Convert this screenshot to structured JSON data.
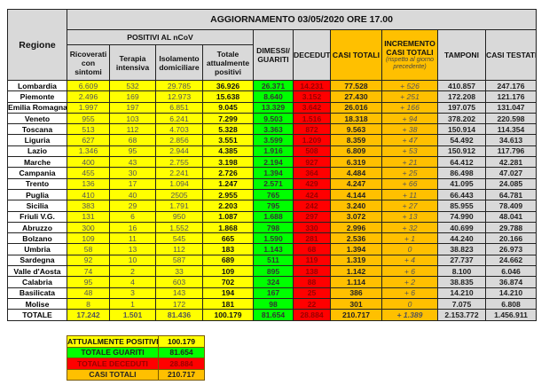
{
  "header": {
    "regione": "Regione",
    "title": "AGGIORNAMENTO 03/05/2020 ORE 17.00",
    "positivi": "POSITIVI AL nCoV",
    "ricoverati": "Ricoverati con sintomi",
    "terapia": "Terapia intensiva",
    "isolamento": "Isolamento domiciliare",
    "totale_positivi": "Totale attualmente positivi",
    "dimessi": "DIMESSI/ GUARITI",
    "deceduti": "DECEDUTI",
    "casi_totali": "CASI TOTALI",
    "incremento": "INCREMENTO CASI TOTALI",
    "incremento_note": "(rispetto al giorno precedente)",
    "tamponi": "TAMPONI",
    "casi_testati": "CASI TESTATI"
  },
  "rows": [
    [
      "Lombardia",
      "6.609",
      "532",
      "29.785",
      "36.926",
      "26.371",
      "14.231",
      "77.528",
      "+ 526",
      "410.857",
      "247.176"
    ],
    [
      "Piemonte",
      "2.496",
      "169",
      "12.973",
      "15.638",
      "8.640",
      "3.152",
      "27.430",
      "+ 251",
      "172.208",
      "121.176"
    ],
    [
      "Emilia Romagna",
      "1.997",
      "197",
      "6.851",
      "9.045",
      "13.329",
      "3.642",
      "26.016",
      "+ 166",
      "197.075",
      "131.047"
    ],
    [
      "Veneto",
      "955",
      "103",
      "6.241",
      "7.299",
      "9.503",
      "1.516",
      "18.318",
      "+ 94",
      "378.202",
      "220.598"
    ],
    [
      "Toscana",
      "513",
      "112",
      "4.703",
      "5.328",
      "3.363",
      "872",
      "9.563",
      "+ 38",
      "150.914",
      "114.354"
    ],
    [
      "Liguria",
      "627",
      "68",
      "2.856",
      "3.551",
      "3.599",
      "1.209",
      "8.359",
      "+ 47",
      "54.492",
      "34.613"
    ],
    [
      "Lazio",
      "1.346",
      "95",
      "2.944",
      "4.385",
      "1.916",
      "508",
      "6.809",
      "+ 53",
      "150.912",
      "117.796"
    ],
    [
      "Marche",
      "400",
      "43",
      "2.755",
      "3.198",
      "2.194",
      "927",
      "6.319",
      "+ 21",
      "64.412",
      "42.281"
    ],
    [
      "Campania",
      "455",
      "30",
      "2.241",
      "2.726",
      "1.394",
      "364",
      "4.484",
      "+ 25",
      "86.498",
      "47.027"
    ],
    [
      "Trento",
      "136",
      "17",
      "1.094",
      "1.247",
      "2.571",
      "429",
      "4.247",
      "+ 66",
      "41.095",
      "24.085"
    ],
    [
      "Puglia",
      "410",
      "40",
      "2505",
      "2.955",
      "765",
      "424",
      "4.144",
      "+ 11",
      "66.443",
      "64.781"
    ],
    [
      "Sicilia",
      "383",
      "29",
      "1.791",
      "2.203",
      "795",
      "242",
      "3.240",
      "+ 27",
      "85.955",
      "78.409"
    ],
    [
      "Friuli V.G.",
      "131",
      "6",
      "950",
      "1.087",
      "1.688",
      "297",
      "3.072",
      "+ 13",
      "74.990",
      "48.041"
    ],
    [
      "Abruzzo",
      "300",
      "16",
      "1.552",
      "1.868",
      "798",
      "330",
      "2.996",
      "+ 32",
      "40.699",
      "29.788"
    ],
    [
      "Bolzano",
      "109",
      "11",
      "545",
      "665",
      "1.590",
      "281",
      "2.536",
      "+ 1",
      "44.240",
      "20.166"
    ],
    [
      "Umbria",
      "58",
      "13",
      "112",
      "183",
      "1.143",
      "68",
      "1.394",
      "0",
      "38.823",
      "26.973"
    ],
    [
      "Sardegna",
      "92",
      "10",
      "587",
      "689",
      "511",
      "119",
      "1.319",
      "+ 4",
      "27.737",
      "24.662"
    ],
    [
      "Valle d'Aosta",
      "74",
      "2",
      "33",
      "109",
      "895",
      "138",
      "1.142",
      "+ 6",
      "8.100",
      "6.046"
    ],
    [
      "Calabria",
      "95",
      "4",
      "603",
      "702",
      "324",
      "88",
      "1.114",
      "+ 2",
      "38.835",
      "36.874"
    ],
    [
      "Basilicata",
      "48",
      "3",
      "143",
      "194",
      "167",
      "25",
      "386",
      "+ 6",
      "14.210",
      "14.210"
    ],
    [
      "Molise",
      "8",
      "1",
      "172",
      "181",
      "98",
      "22",
      "301",
      "0",
      "7.075",
      "6.808"
    ]
  ],
  "totale": [
    "TOTALE",
    "17.242",
    "1.501",
    "81.436",
    "100.179",
    "81.654",
    "28.884",
    "210.717",
    "+ 1.389",
    "2.153.772",
    "1.456.911"
  ],
  "summary": [
    {
      "label": "ATTUALMENTE POSITIVI",
      "value": "100.179",
      "color": "#ffff00",
      "text": "#111"
    },
    {
      "label": "TOTALE GUARITI",
      "value": "81.654",
      "color": "#00ff00",
      "text": "#222"
    },
    {
      "label": "TOTALE DECEDUTI",
      "value": "28.884",
      "color": "#ff0000",
      "text": "#900"
    },
    {
      "label": "CASI TOTALI",
      "value": "210.717",
      "color": "#ffc000",
      "text": "#222"
    }
  ]
}
